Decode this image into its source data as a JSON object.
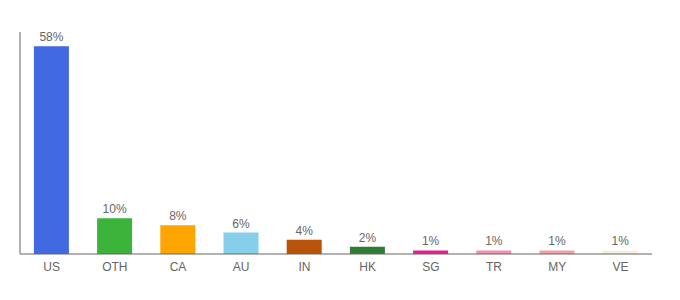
{
  "chart_data": {
    "type": "bar",
    "categories": [
      "US",
      "OTH",
      "CA",
      "AU",
      "IN",
      "HK",
      "SG",
      "TR",
      "MY",
      "VE"
    ],
    "values": [
      58,
      10,
      8,
      6,
      4,
      2,
      1,
      1,
      1,
      1
    ],
    "value_labels": [
      "58%",
      "10%",
      "8%",
      "6%",
      "4%",
      "2%",
      "1%",
      "1%",
      "1%",
      "1%"
    ],
    "colors": [
      "#4169e1",
      "#3cb43c",
      "#ffa500",
      "#87ceeb",
      "#b8530a",
      "#2e7d32",
      "#e91e8c",
      "#f48fb1",
      "#f4a0a0",
      "#f5f0dc"
    ],
    "ylim": [
      0,
      62
    ],
    "data_labels": true,
    "tick_labels": "x",
    "grid": false
  }
}
